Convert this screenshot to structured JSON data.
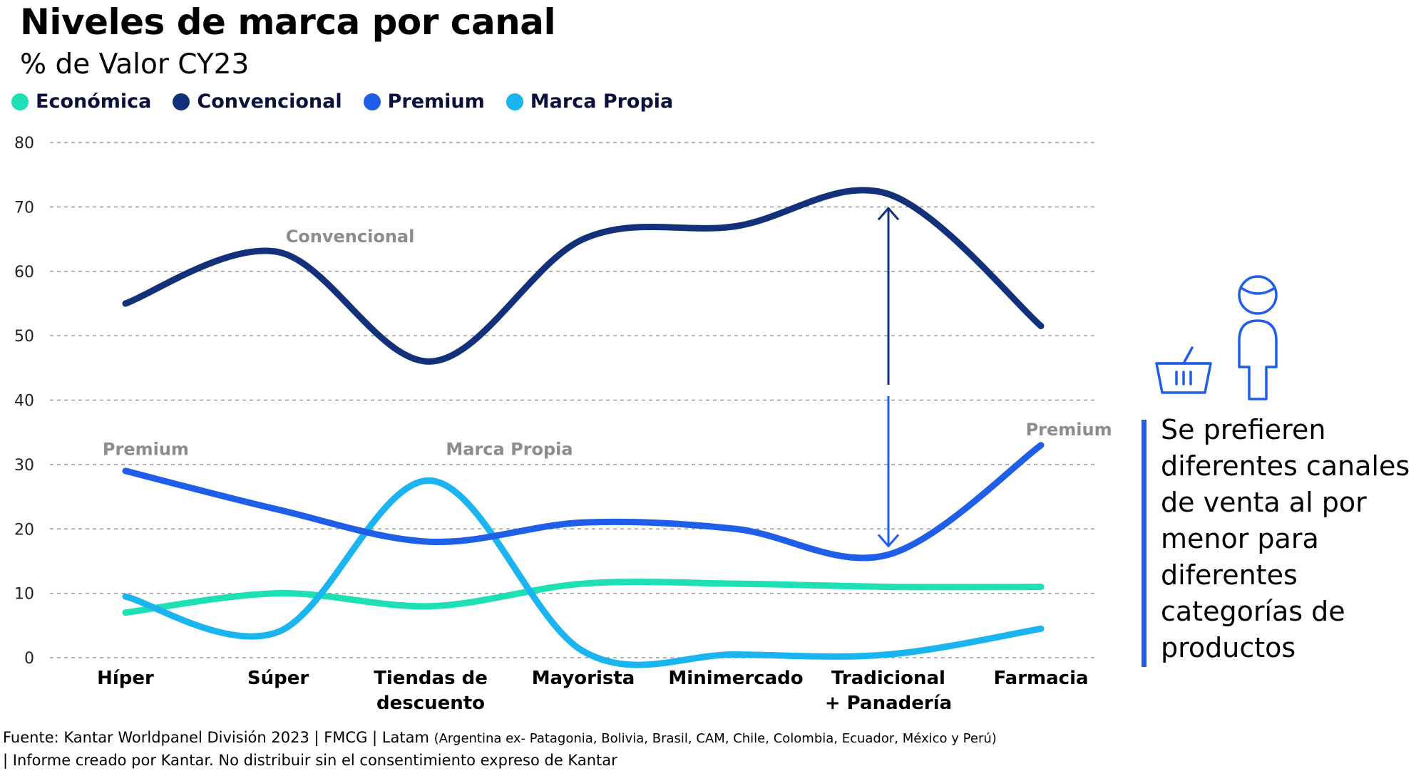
{
  "title": "Niveles de marca por canal",
  "subtitle": "% de Valor CY23",
  "legend": [
    {
      "label": "Económica",
      "color": "#1ee0b4"
    },
    {
      "label": "Convencional",
      "color": "#13307a"
    },
    {
      "label": "Premium",
      "color": "#1f5ee8"
    },
    {
      "label": "Marca Propia",
      "color": "#1ab4f0"
    }
  ],
  "chart_data": {
    "type": "line",
    "categories": [
      [
        "Híper"
      ],
      [
        "Súper"
      ],
      [
        "Tiendas de",
        "descuento"
      ],
      [
        "Mayorista"
      ],
      [
        "Minimercado"
      ],
      [
        "Tradicional",
        "+ Panadería"
      ],
      [
        "Farmacia"
      ]
    ],
    "ylim": [
      0,
      80
    ],
    "yticks": [
      0,
      10,
      20,
      30,
      40,
      50,
      60,
      70,
      80
    ],
    "grid": "horizontal dashed",
    "series": [
      {
        "name": "Económica",
        "color": "#1ee0b4",
        "values": [
          7,
          10,
          8,
          11.5,
          11.5,
          11,
          11
        ]
      },
      {
        "name": "Convencional",
        "color": "#13307a",
        "values": [
          55,
          63,
          46,
          65,
          67,
          72,
          51.5
        ]
      },
      {
        "name": "Premium",
        "color": "#1f5ee8",
        "values": [
          29,
          23,
          18,
          21,
          20,
          16,
          33
        ]
      },
      {
        "name": "Marca Propia",
        "color": "#1ab4f0",
        "values": [
          9.5,
          4,
          27.5,
          1,
          0.5,
          0.5,
          4.5
        ]
      }
    ],
    "annotations": [
      {
        "text": "Convencional",
        "x": 1.05,
        "y": 64.5
      },
      {
        "text": "Premium",
        "x": -0.15,
        "y": 31.5
      },
      {
        "text": "Marca Propia",
        "x": 2.1,
        "y": 31.5
      },
      {
        "text": "Premium",
        "x": 5.9,
        "y": 34.5
      }
    ],
    "arrow": {
      "x": 5.0,
      "from": 16,
      "to": 72
    }
  },
  "side_note": "Se prefieren diferentes canales de venta al por menor para diferentes categorías de productos",
  "icons": [
    "basket-icon",
    "shopper-icon"
  ],
  "footer": {
    "line1_main": "Fuente: Kantar Worldpanel División 2023 | FMCG | Latam ",
    "line1_small": "(Argentina ex- Patagonia, Bolivia, Brasil, CAM, Chile, Colombia, Ecuador, México y Perú)",
    "line2": "| Informe creado por Kantar. No distribuir sin el consentimiento expreso de Kantar"
  }
}
